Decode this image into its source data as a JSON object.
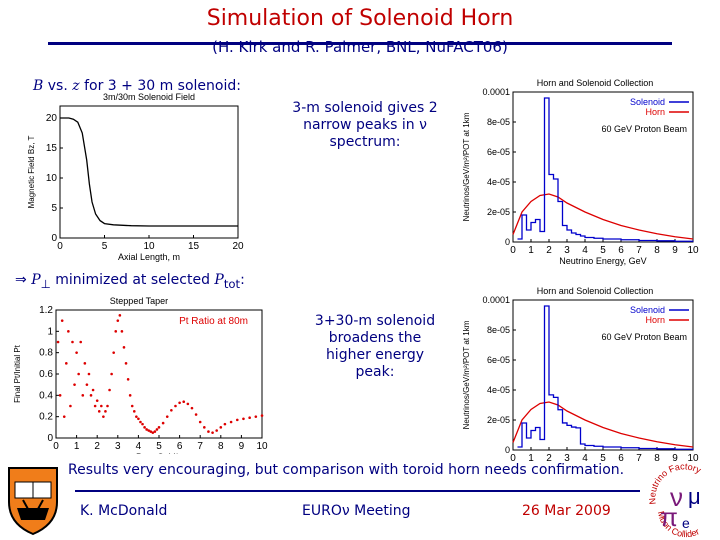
{
  "slide": {
    "title": "Simulation of Solenoid Horn",
    "subtitle": "(H. Kirk and R. Palmer, BNL, NuFACT06)",
    "bz_label": {
      "sym_b": "B",
      "vs": "vs.",
      "sym_z": "z",
      "rest": "for 3 + 30 m solenoid:"
    },
    "pt_label": {
      "arrow": "⇒",
      "sym_p": "P",
      "perp": "⊥",
      "mid": "minimized at selected",
      "sym_ptot": "P",
      "sub": "tot",
      "colon": ":"
    },
    "note1": "3-m solenoid gives 2 narrow peaks in ν spectrum:",
    "note2": "3+30-m solenoid broadens the higher energy peak:",
    "conclusion": "Results very encouraging, but comparison with toroid horn needs confirmation.",
    "footer": {
      "author": "K. McDonald",
      "meeting": "EUROν Meeting",
      "date": "26 Mar 2009"
    }
  },
  "logos": {
    "shield_text": "DEI SUB NUMINE VIGET",
    "nf_text_top": "Neutrino Factory",
    "nf_text_bottom": "Muon Collider"
  },
  "chart_data": [
    {
      "type": "line",
      "title": "3m/30m Solenoid Field",
      "xlabel": "Axial Length, m",
      "ylabel": "Magnetic Field Bz, T",
      "xlim": [
        0,
        20
      ],
      "ylim": [
        0,
        22
      ],
      "xticks": [
        "0",
        "5",
        "10",
        "15",
        "20"
      ],
      "yticks": [
        "0",
        "5",
        "10",
        "15",
        "20"
      ],
      "x": [
        0,
        0.5,
        1,
        1.5,
        2,
        2.5,
        3,
        3.3,
        3.6,
        4,
        4.5,
        5,
        6,
        8,
        10,
        15,
        20
      ],
      "y": [
        20,
        20,
        20,
        19.8,
        19.3,
        17.5,
        13,
        9,
        6,
        4,
        2.9,
        2.4,
        2.2,
        2.05,
        2.0,
        2.0,
        2.0
      ],
      "color": "#000000"
    },
    {
      "type": "line",
      "title": "Horn and Solenoid Collection",
      "xlabel": "Neutrino Energy, GeV",
      "ylabel": "Neutrinos/GeV/m²/POT at 1km",
      "annotation": "60 GeV Proton Beam",
      "xlim": [
        0,
        10
      ],
      "ylim": [
        0,
        0.0001
      ],
      "xticks": [
        "0",
        "1",
        "2",
        "3",
        "4",
        "5",
        "6",
        "7",
        "8",
        "9",
        "10"
      ],
      "yticks": [
        "0",
        "2e-05",
        "4e-05",
        "6e-05",
        "8e-05",
        "0.0001"
      ],
      "series": [
        {
          "name": "Solenoid",
          "color": "#0000cc",
          "x": [
            0.25,
            0.5,
            0.75,
            1.0,
            1.25,
            1.5,
            1.75,
            2.0,
            2.25,
            2.5,
            2.75,
            3.0,
            3.25,
            3.5,
            3.75,
            4.0,
            4.5,
            5.0,
            6,
            7,
            8,
            9,
            10
          ],
          "y": [
            2e-06,
            1.8e-05,
            8e-06,
            1.3e-05,
            1.5e-05,
            7e-06,
            9.6e-05,
            4.5e-05,
            4.2e-05,
            2.7e-05,
            1.1e-05,
            8e-06,
            6e-06,
            5e-06,
            4e-06,
            3e-06,
            2.5e-06,
            2e-06,
            1.5e-06,
            1e-06,
            8e-07,
            5e-07,
            3e-07
          ]
        },
        {
          "name": "Horn",
          "color": "#dd0000",
          "x": [
            0,
            0.5,
            1.0,
            1.5,
            2.0,
            2.5,
            3.0,
            4,
            5,
            6,
            7,
            8,
            9,
            10
          ],
          "y": [
            5e-06,
            2e-05,
            2.7e-05,
            3.1e-05,
            3.2e-05,
            3e-05,
            2.6e-05,
            2e-05,
            1.5e-05,
            1.1e-05,
            8e-06,
            5.5e-06,
            3.5e-06,
            2e-06
          ]
        }
      ]
    },
    {
      "type": "scatter",
      "title": "Stepped Taper",
      "xlabel": "Ptot, GeV/c",
      "ylabel": "Final Pt/Initial Pt",
      "annotation": "Pt Ratio at 80m",
      "xlim": [
        0,
        10
      ],
      "ylim": [
        0,
        1.2
      ],
      "xticks": [
        "0",
        "1",
        "2",
        "3",
        "4",
        "5",
        "6",
        "7",
        "8",
        "9",
        "10"
      ],
      "yticks": [
        "0",
        "0.2",
        "0.4",
        "0.6",
        "0.8",
        "1",
        "1.2"
      ],
      "color": "#dd0000",
      "points": [
        [
          0.1,
          0.9
        ],
        [
          0.2,
          0.4
        ],
        [
          0.3,
          1.1
        ],
        [
          0.4,
          0.2
        ],
        [
          0.5,
          0.7
        ],
        [
          0.6,
          1.0
        ],
        [
          0.7,
          0.3
        ],
        [
          0.8,
          0.9
        ],
        [
          0.9,
          0.5
        ],
        [
          1.0,
          0.8
        ],
        [
          1.1,
          0.6
        ],
        [
          1.2,
          0.9
        ],
        [
          1.3,
          0.4
        ],
        [
          1.4,
          0.7
        ],
        [
          1.5,
          0.5
        ],
        [
          1.6,
          0.6
        ],
        [
          1.7,
          0.4
        ],
        [
          1.8,
          0.45
        ],
        [
          1.9,
          0.3
        ],
        [
          2.0,
          0.35
        ],
        [
          2.1,
          0.25
        ],
        [
          2.2,
          0.3
        ],
        [
          2.3,
          0.2
        ],
        [
          2.4,
          0.25
        ],
        [
          2.5,
          0.3
        ],
        [
          2.6,
          0.45
        ],
        [
          2.7,
          0.6
        ],
        [
          2.8,
          0.8
        ],
        [
          2.9,
          1.0
        ],
        [
          3.0,
          1.1
        ],
        [
          3.1,
          1.15
        ],
        [
          3.2,
          1.0
        ],
        [
          3.3,
          0.85
        ],
        [
          3.4,
          0.7
        ],
        [
          3.5,
          0.55
        ],
        [
          3.6,
          0.4
        ],
        [
          3.7,
          0.3
        ],
        [
          3.8,
          0.25
        ],
        [
          3.9,
          0.2
        ],
        [
          4.0,
          0.18
        ],
        [
          4.1,
          0.15
        ],
        [
          4.2,
          0.13
        ],
        [
          4.3,
          0.1
        ],
        [
          4.4,
          0.08
        ],
        [
          4.5,
          0.07
        ],
        [
          4.6,
          0.06
        ],
        [
          4.7,
          0.05
        ],
        [
          4.8,
          0.06
        ],
        [
          4.9,
          0.08
        ],
        [
          5.0,
          0.1
        ],
        [
          5.2,
          0.14
        ],
        [
          5.4,
          0.2
        ],
        [
          5.6,
          0.26
        ],
        [
          5.8,
          0.3
        ],
        [
          6.0,
          0.33
        ],
        [
          6.2,
          0.34
        ],
        [
          6.4,
          0.32
        ],
        [
          6.6,
          0.28
        ],
        [
          6.8,
          0.22
        ],
        [
          7.0,
          0.15
        ],
        [
          7.2,
          0.1
        ],
        [
          7.4,
          0.06
        ],
        [
          7.6,
          0.05
        ],
        [
          7.8,
          0.07
        ],
        [
          8.0,
          0.1
        ],
        [
          8.2,
          0.13
        ],
        [
          8.5,
          0.15
        ],
        [
          8.8,
          0.17
        ],
        [
          9.1,
          0.18
        ],
        [
          9.4,
          0.19
        ],
        [
          9.7,
          0.2
        ],
        [
          10.0,
          0.21
        ]
      ]
    }
  ]
}
